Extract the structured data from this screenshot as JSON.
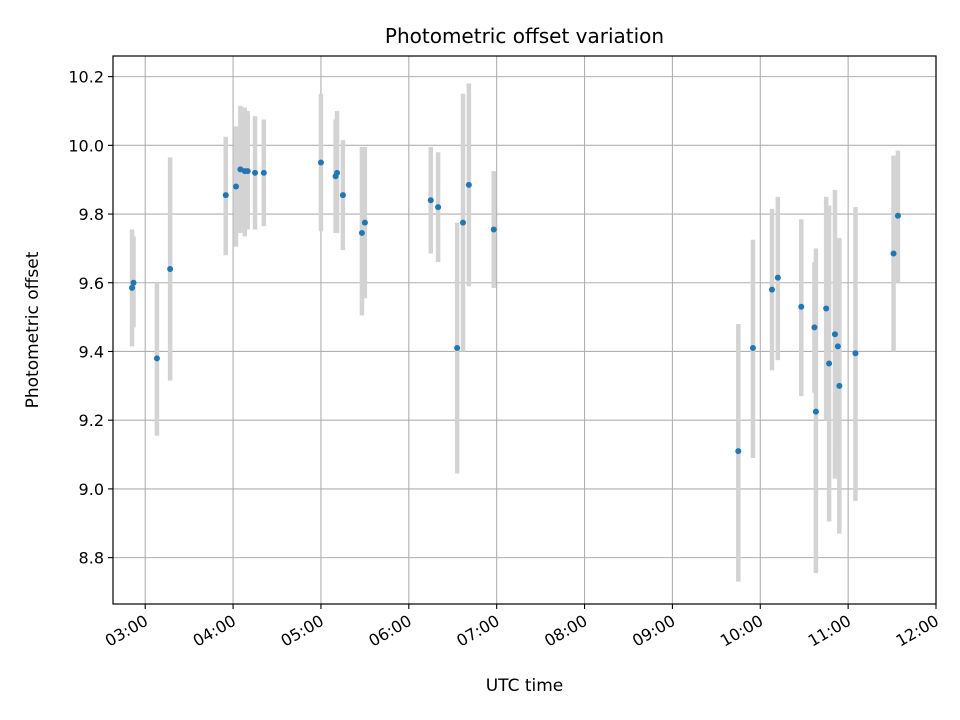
{
  "chart_data": {
    "type": "scatter",
    "title": "Photometric offset variation",
    "xlabel": "UTC time",
    "ylabel": "Photometric offset",
    "grid": true,
    "xlim": [
      "02:38",
      "12:00"
    ],
    "ylim": [
      8.665,
      10.26
    ],
    "x_ticks": [
      "03:00",
      "04:00",
      "05:00",
      "06:00",
      "07:00",
      "08:00",
      "09:00",
      "10:00",
      "11:00",
      "12:00"
    ],
    "y_ticks": [
      "8.8",
      "9.0",
      "9.2",
      "9.4",
      "9.6",
      "9.8",
      "10.0",
      "10.2"
    ],
    "colors": {
      "point": "#1f77b4",
      "errorbar": "#d3d3d3",
      "grid": "#b0b0b0"
    },
    "series": [
      {
        "points": [
          {
            "x": "02:51",
            "y": 9.585,
            "low": 9.415,
            "high": 9.755
          },
          {
            "x": "02:52",
            "y": 9.6,
            "low": 9.47,
            "high": 9.735
          },
          {
            "x": "03:08",
            "y": 9.38,
            "low": 9.155,
            "high": 9.6
          },
          {
            "x": "03:17",
            "y": 9.64,
            "low": 9.315,
            "high": 9.965
          },
          {
            "x": "03:55",
            "y": 9.855,
            "low": 9.68,
            "high": 10.025
          },
          {
            "x": "04:02",
            "y": 9.88,
            "low": 9.705,
            "high": 10.055
          },
          {
            "x": "04:05",
            "y": 9.93,
            "low": 9.745,
            "high": 10.115
          },
          {
            "x": "04:08",
            "y": 9.925,
            "low": 9.735,
            "high": 10.11
          },
          {
            "x": "04:10",
            "y": 9.925,
            "low": 9.755,
            "high": 10.1
          },
          {
            "x": "04:15",
            "y": 9.92,
            "low": 9.755,
            "high": 10.085
          },
          {
            "x": "04:21",
            "y": 9.92,
            "low": 9.765,
            "high": 10.075
          },
          {
            "x": "05:00",
            "y": 9.95,
            "low": 9.75,
            "high": 10.15
          },
          {
            "x": "05:10",
            "y": 9.91,
            "low": 9.745,
            "high": 10.075
          },
          {
            "x": "05:11",
            "y": 9.92,
            "low": 9.745,
            "high": 10.1
          },
          {
            "x": "05:15",
            "y": 9.855,
            "low": 9.695,
            "high": 10.015
          },
          {
            "x": "05:28",
            "y": 9.745,
            "low": 9.505,
            "high": 9.995
          },
          {
            "x": "05:30",
            "y": 9.775,
            "low": 9.555,
            "high": 9.995
          },
          {
            "x": "06:15",
            "y": 9.84,
            "low": 9.685,
            "high": 9.995
          },
          {
            "x": "06:20",
            "y": 9.82,
            "low": 9.66,
            "high": 9.98
          },
          {
            "x": "06:33",
            "y": 9.41,
            "low": 9.045,
            "high": 9.775
          },
          {
            "x": "06:37",
            "y": 9.775,
            "low": 9.4,
            "high": 10.15
          },
          {
            "x": "06:41",
            "y": 9.885,
            "low": 9.59,
            "high": 10.18
          },
          {
            "x": "06:58",
            "y": 9.755,
            "low": 9.585,
            "high": 9.925
          },
          {
            "x": "09:45",
            "y": 9.11,
            "low": 8.73,
            "high": 9.48
          },
          {
            "x": "09:55",
            "y": 9.41,
            "low": 9.09,
            "high": 9.725
          },
          {
            "x": "10:08",
            "y": 9.58,
            "low": 9.345,
            "high": 9.815
          },
          {
            "x": "10:12",
            "y": 9.615,
            "low": 9.375,
            "high": 9.85
          },
          {
            "x": "10:28",
            "y": 9.53,
            "low": 9.27,
            "high": 9.785
          },
          {
            "x": "10:37",
            "y": 9.47,
            "low": 9.28,
            "high": 9.66
          },
          {
            "x": "10:38",
            "y": 9.225,
            "low": 8.755,
            "high": 9.7
          },
          {
            "x": "10:45",
            "y": 9.525,
            "low": 9.2,
            "high": 9.85
          },
          {
            "x": "10:47",
            "y": 9.365,
            "low": 8.905,
            "high": 9.825
          },
          {
            "x": "10:51",
            "y": 9.45,
            "low": 9.03,
            "high": 9.87
          },
          {
            "x": "10:53",
            "y": 9.415,
            "low": 9.11,
            "high": 9.72
          },
          {
            "x": "10:54",
            "y": 9.3,
            "low": 8.87,
            "high": 9.73
          },
          {
            "x": "11:05",
            "y": 9.395,
            "low": 8.965,
            "high": 9.82
          },
          {
            "x": "11:31",
            "y": 9.685,
            "low": 9.4,
            "high": 9.97
          },
          {
            "x": "11:34",
            "y": 9.795,
            "low": 9.6,
            "high": 9.985
          }
        ]
      }
    ]
  }
}
